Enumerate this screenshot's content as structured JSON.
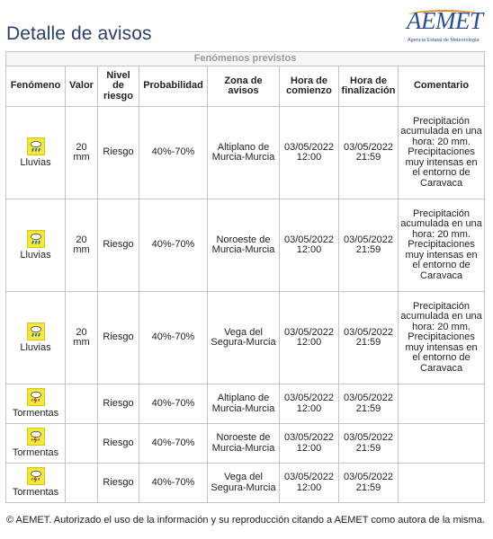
{
  "page": {
    "title": "Detalle de avisos",
    "footer": "© AEMET. Autorizado el uso de la información y su reproducción citando a AEMET como autora de la misma."
  },
  "logo": {
    "wordmark": "AEMET",
    "subtitle": "Agencia Estatal de Meteorología"
  },
  "table": {
    "group_header": "Fenómenos previstos",
    "headers": {
      "fenomeno": "Fenómeno",
      "valor": "Valor",
      "nivel": "Nivel de riesgo",
      "probabilidad": "Probabilidad",
      "zona": "Zona de avisos",
      "comienzo": "Hora de comienzo",
      "fin": "Hora de finalización",
      "comentario": "Comentario"
    },
    "rows": [
      {
        "fenomeno": "Lluvias",
        "icon": "rain-icon",
        "valor": "20 mm",
        "nivel": "Riesgo",
        "probabilidad": "40%-70%",
        "zona": "Altiplano de Murcia-Murcia",
        "comienzo": "03/05/2022 12:00",
        "fin": "03/05/2022 21:59",
        "comentario": "Precipitación acumulada en una hora: 20 mm. Precipitaciones muy intensas en el entorno de Caravaca"
      },
      {
        "fenomeno": "Lluvias",
        "icon": "rain-icon",
        "valor": "20 mm",
        "nivel": "Riesgo",
        "probabilidad": "40%-70%",
        "zona": "Noroeste de Murcia-Murcia",
        "comienzo": "03/05/2022 12:00",
        "fin": "03/05/2022 21:59",
        "comentario": "Precipitación acumulada en una hora: 20 mm. Precipitaciones muy intensas en el entorno de Caravaca"
      },
      {
        "fenomeno": "Lluvias",
        "icon": "rain-icon",
        "valor": "20 mm",
        "nivel": "Riesgo",
        "probabilidad": "40%-70%",
        "zona": "Vega del Segura-Murcia",
        "comienzo": "03/05/2022 12:00",
        "fin": "03/05/2022 21:59",
        "comentario": "Precipitación acumulada en una hora: 20 mm. Precipitaciones muy intensas en el entorno de Caravaca"
      },
      {
        "fenomeno": "Tormentas",
        "icon": "storm-icon",
        "valor": "",
        "nivel": "Riesgo",
        "probabilidad": "40%-70%",
        "zona": "Altiplano de Murcia-Murcia",
        "comienzo": "03/05/2022 12:00",
        "fin": "03/05/2022 21:59",
        "comentario": ""
      },
      {
        "fenomeno": "Tormentas",
        "icon": "storm-icon",
        "valor": "",
        "nivel": "Riesgo",
        "probabilidad": "40%-70%",
        "zona": "Noroeste de Murcia-Murcia",
        "comienzo": "03/05/2022 12:00",
        "fin": "03/05/2022 21:59",
        "comentario": ""
      },
      {
        "fenomeno": "Tormentas",
        "icon": "storm-icon",
        "valor": "",
        "nivel": "Riesgo",
        "probabilidad": "40%-70%",
        "zona": "Vega del Segura-Murcia",
        "comienzo": "03/05/2022 12:00",
        "fin": "03/05/2022 21:59",
        "comentario": ""
      }
    ]
  },
  "colors": {
    "title": "#2b3f6b",
    "icon_bg": "#f4ea3c",
    "logo_accent": "#e08a2c",
    "logo_blue": "#2b4f8f"
  }
}
